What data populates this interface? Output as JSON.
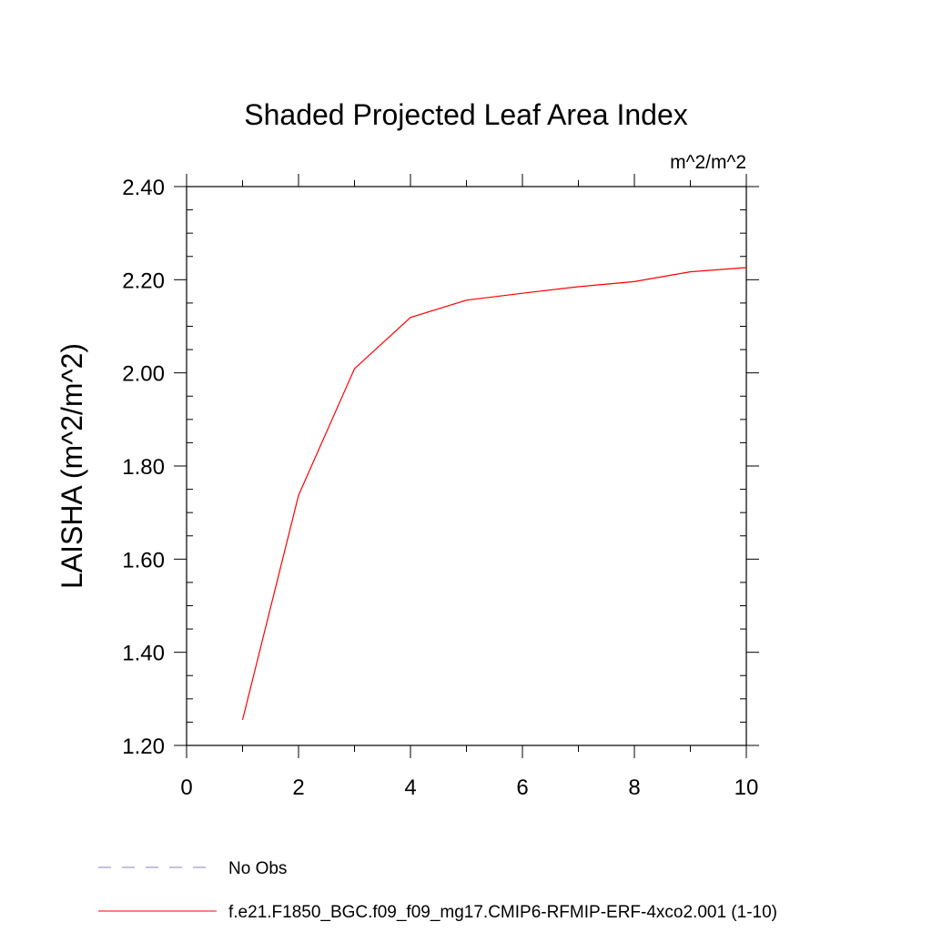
{
  "chart_data": {
    "type": "line",
    "title": "Shaded Projected Leaf Area Index",
    "units_label": "m^2/m^2",
    "ylabel": "LAISHA  (m^2/m^2)",
    "xlabel": "",
    "xlim": [
      0,
      10
    ],
    "ylim": [
      1.2,
      2.4
    ],
    "x_ticks": [
      0,
      2,
      4,
      6,
      8,
      10
    ],
    "x_tick_labels": [
      "0",
      "2",
      "4",
      "6",
      "8",
      "10"
    ],
    "y_ticks": [
      1.2,
      1.4,
      1.6,
      1.8,
      2.0,
      2.2,
      2.4
    ],
    "y_tick_labels": [
      "1.20",
      "1.40",
      "1.60",
      "1.80",
      "2.00",
      "2.20",
      "2.40"
    ],
    "grid": false,
    "legend_placement": "bottom-left",
    "series": [
      {
        "name": "f.e21.F1850_BGC.f09_f09_mg17.CMIP6-RFMIP-ERF-4xco2.001 (1-10)",
        "color": "#ff0000",
        "style": "solid",
        "x": [
          1,
          2,
          3,
          4,
          5,
          6,
          7,
          8,
          9,
          10
        ],
        "y": [
          1.255,
          1.737,
          2.009,
          2.119,
          2.156,
          2.171,
          2.185,
          2.196,
          2.217,
          2.226
        ]
      }
    ],
    "legend": [
      {
        "label": "No Obs",
        "color": "#8a7fc0",
        "style": "dashed"
      },
      {
        "label": "f.e21.F1850_BGC.f09_f09_mg17.CMIP6-RFMIP-ERF-4xco2.001 (1-10)",
        "color": "#ff0000",
        "style": "solid"
      }
    ]
  }
}
